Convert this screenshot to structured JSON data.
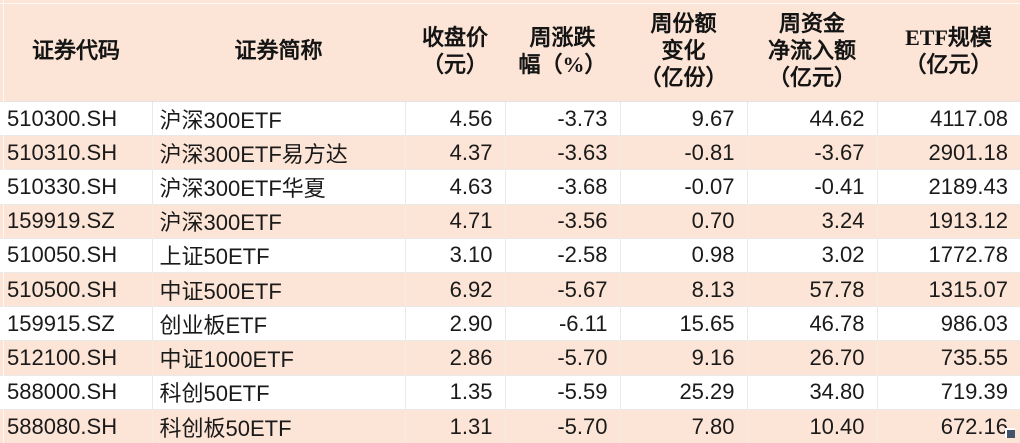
{
  "colors": {
    "header_bg": "#fce4d6",
    "stripe_bg": "#fce4d6",
    "row_bg": "#ffffff",
    "gridline": "#e9e9e9",
    "text": "#1a1a1a",
    "fill_handle": "#44546a"
  },
  "table": {
    "columns": [
      {
        "id": "code",
        "label": "证券代码",
        "lines": [
          "证券代码"
        ]
      },
      {
        "id": "name",
        "label": "证券简称",
        "lines": [
          "证券简称"
        ]
      },
      {
        "id": "close",
        "label": "收盘价（元）",
        "lines": [
          "收盘价",
          "（元）"
        ]
      },
      {
        "id": "wkchg",
        "label": "周涨跌幅（%）",
        "lines": [
          "周涨跌",
          "幅（%）"
        ]
      },
      {
        "id": "shrchg",
        "label": "周份额变化（亿份）",
        "lines": [
          "周份额",
          "变化",
          "（亿份）"
        ]
      },
      {
        "id": "inflow",
        "label": "周资金净流入额（亿元）",
        "lines": [
          "周资金",
          "净流入额",
          "（亿元）"
        ]
      },
      {
        "id": "scale",
        "label": "ETF规模（亿元）",
        "lines": [
          "ETF规模",
          "（亿元）"
        ]
      }
    ],
    "rows": [
      [
        "510300.SH",
        "沪深300ETF",
        "4.56",
        "-3.73",
        "9.67",
        "44.62",
        "4117.08"
      ],
      [
        "510310.SH",
        "沪深300ETF易方达",
        "4.37",
        "-3.63",
        "-0.81",
        "-3.67",
        "2901.18"
      ],
      [
        "510330.SH",
        "沪深300ETF华夏",
        "4.63",
        "-3.68",
        "-0.07",
        "-0.41",
        "2189.43"
      ],
      [
        "159919.SZ",
        "沪深300ETF",
        "4.71",
        "-3.56",
        "0.70",
        "3.24",
        "1913.12"
      ],
      [
        "510050.SH",
        "上证50ETF",
        "3.10",
        "-2.58",
        "0.98",
        "3.02",
        "1772.78"
      ],
      [
        "510500.SH",
        "中证500ETF",
        "6.92",
        "-5.67",
        "8.13",
        "57.78",
        "1315.07"
      ],
      [
        "159915.SZ",
        "创业板ETF",
        "2.90",
        "-6.11",
        "15.65",
        "46.78",
        "986.03"
      ],
      [
        "512100.SH",
        "中证1000ETF",
        "2.86",
        "-5.70",
        "9.16",
        "26.70",
        "735.55"
      ],
      [
        "588000.SH",
        "科创50ETF",
        "1.35",
        "-5.59",
        "25.29",
        "34.80",
        "719.39"
      ],
      [
        "588080.SH",
        "科创板50ETF",
        "1.31",
        "-5.70",
        "7.80",
        "10.40",
        "672.16"
      ]
    ]
  },
  "chart_data": {
    "type": "table",
    "title": "ETF周度数据",
    "columns": [
      "证券代码",
      "证券简称",
      "收盘价（元）",
      "周涨跌幅（%）",
      "周份额变化（亿份）",
      "周资金净流入额（亿元）",
      "ETF规模（亿元）"
    ],
    "rows": [
      [
        "510300.SH",
        "沪深300ETF",
        4.56,
        -3.73,
        9.67,
        44.62,
        4117.08
      ],
      [
        "510310.SH",
        "沪深300ETF易方达",
        4.37,
        -3.63,
        -0.81,
        -3.67,
        2901.18
      ],
      [
        "510330.SH",
        "沪深300ETF华夏",
        4.63,
        -3.68,
        -0.07,
        -0.41,
        2189.43
      ],
      [
        "159919.SZ",
        "沪深300ETF",
        4.71,
        -3.56,
        0.7,
        3.24,
        1913.12
      ],
      [
        "510050.SH",
        "上证50ETF",
        3.1,
        -2.58,
        0.98,
        3.02,
        1772.78
      ],
      [
        "510500.SH",
        "中证500ETF",
        6.92,
        -5.67,
        8.13,
        57.78,
        1315.07
      ],
      [
        "159915.SZ",
        "创业板ETF",
        2.9,
        -6.11,
        15.65,
        46.78,
        986.03
      ],
      [
        "512100.SH",
        "中证1000ETF",
        2.86,
        -5.7,
        9.16,
        26.7,
        735.55
      ],
      [
        "588000.SH",
        "科创50ETF",
        1.35,
        -5.59,
        25.29,
        34.8,
        719.39
      ],
      [
        "588080.SH",
        "科创板50ETF",
        1.31,
        -5.7,
        7.8,
        10.4,
        672.16
      ]
    ]
  }
}
